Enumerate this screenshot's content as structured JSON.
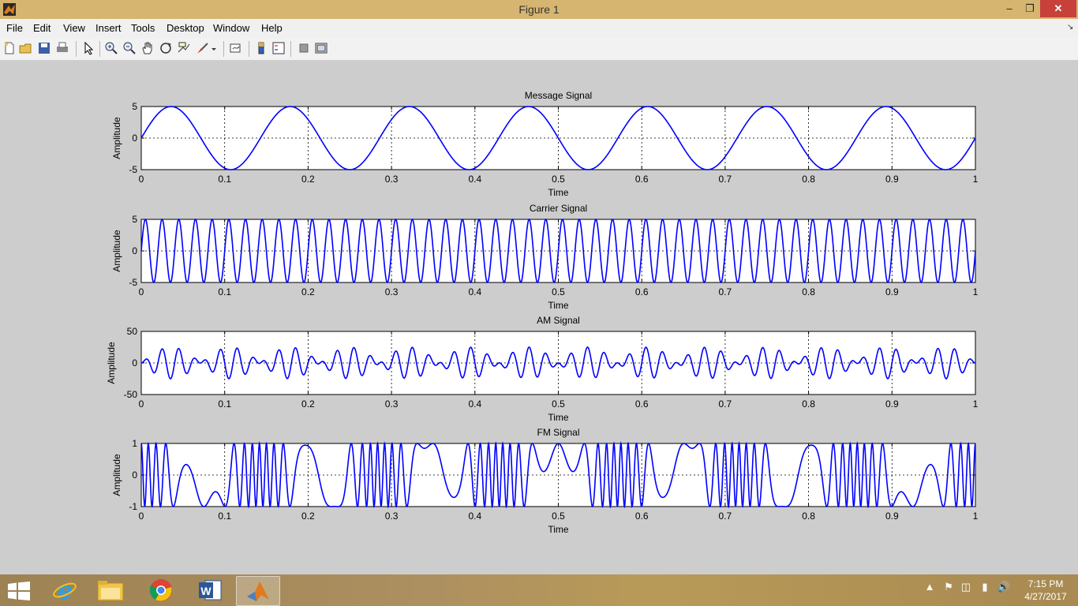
{
  "window": {
    "title": "Figure 1"
  },
  "menubar": [
    "File",
    "Edit",
    "View",
    "Insert",
    "Tools",
    "Desktop",
    "Window",
    "Help"
  ],
  "toolbar_icons": [
    "new-figure-icon",
    "open-file-icon",
    "save-icon",
    "print-icon",
    "edit-plot-arrow-icon",
    "zoom-in-icon",
    "zoom-out-icon",
    "pan-hand-icon",
    "rotate-3d-icon",
    "data-cursor-icon",
    "brush-icon",
    "brush-dropdown-icon",
    "link-plot-icon",
    "insert-colorbar-icon",
    "insert-legend-icon",
    "hide-plot-tools-icon",
    "show-plot-tools-icon"
  ],
  "colors": {
    "line": "#0000ff",
    "titlebar": "#d6b571",
    "figure_bg": "#cdcdcd",
    "close": "#c7413a"
  },
  "chart_data": [
    {
      "type": "line",
      "title": "Message Signal",
      "xlabel": "Time",
      "ylabel": "Amplitude",
      "xlim": [
        0,
        1
      ],
      "ylim": [
        -5,
        5
      ],
      "xticks": [
        "0",
        "0.1",
        "0.2",
        "0.3",
        "0.4",
        "0.5",
        "0.6",
        "0.7",
        "0.8",
        "0.9",
        "1"
      ],
      "yticks": [
        "-5",
        "0",
        "5"
      ],
      "grid": true,
      "series": [
        {
          "formula": "5*sin(2*pi*7*t)",
          "frequency_hz": 7,
          "amplitude": 5
        }
      ]
    },
    {
      "type": "line",
      "title": "Carrier Signal",
      "xlabel": "Time",
      "ylabel": "Amplitude",
      "xlim": [
        0,
        1
      ],
      "ylim": [
        -5,
        5
      ],
      "xticks": [
        "0",
        "0.1",
        "0.2",
        "0.3",
        "0.4",
        "0.5",
        "0.6",
        "0.7",
        "0.8",
        "0.9",
        "1"
      ],
      "yticks": [
        "-5",
        "0",
        "5"
      ],
      "grid": true,
      "series": [
        {
          "formula": "5*sin(2*pi*50*t)",
          "frequency_hz": 50,
          "amplitude": 5
        }
      ]
    },
    {
      "type": "line",
      "title": "AM Signal",
      "xlabel": "Time",
      "ylabel": "Amplitude",
      "xlim": [
        0,
        1
      ],
      "ylim": [
        -50,
        50
      ],
      "xticks": [
        "0",
        "0.1",
        "0.2",
        "0.3",
        "0.4",
        "0.5",
        "0.6",
        "0.7",
        "0.8",
        "0.9",
        "1"
      ],
      "yticks": [
        "-50",
        "0",
        "50"
      ],
      "grid": true,
      "series": [
        {
          "formula": "5*sin(2*pi*7*t)*5*sin(2*pi*50*t)",
          "peak": 25
        }
      ]
    },
    {
      "type": "line",
      "title": "FM Signal",
      "xlabel": "Time",
      "ylabel": "Amplitude",
      "xlim": [
        0,
        1
      ],
      "ylim": [
        -1,
        1
      ],
      "xticks": [
        "0",
        "0.1",
        "0.2",
        "0.3",
        "0.4",
        "0.5",
        "0.6",
        "0.7",
        "0.8",
        "0.9",
        "1"
      ],
      "yticks": [
        "-1",
        "0",
        "1"
      ],
      "grid": true,
      "series": [
        {
          "formula": "cos(2*pi*50*t + 10*sin(2*pi*7*t))",
          "carrier_hz": 50,
          "mod_index": 10
        }
      ]
    }
  ],
  "taskbar": {
    "apps": [
      "internet-explorer-icon",
      "file-explorer-icon",
      "chrome-icon",
      "word-icon",
      "matlab-icon"
    ],
    "clock_time": "7:15 PM",
    "clock_date": "4/27/2017"
  }
}
